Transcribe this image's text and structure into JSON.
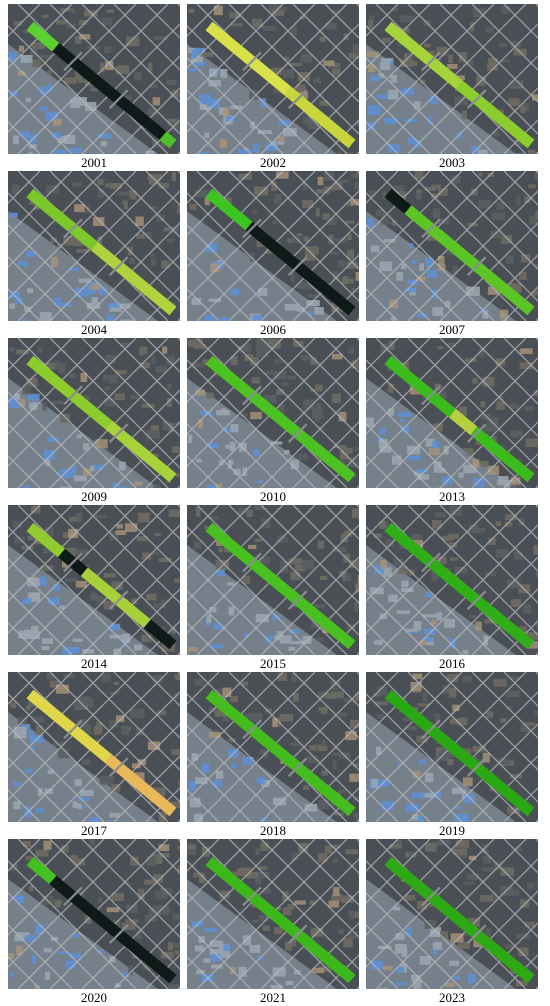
{
  "panels": [
    {
      "year": "2001",
      "corridor": [
        {
          "from": 0.0,
          "to": 0.18,
          "c": "#5ad12e"
        },
        {
          "from": 0.18,
          "to": 0.93,
          "c": "#0d1a18"
        },
        {
          "from": 0.93,
          "to": 1.0,
          "c": "#4fc02a"
        }
      ]
    },
    {
      "year": "2002",
      "corridor": [
        {
          "from": 0.0,
          "to": 0.55,
          "c": "#d8e04a"
        },
        {
          "from": 0.55,
          "to": 1.0,
          "c": "#c8d63c"
        }
      ]
    },
    {
      "year": "2003",
      "corridor": [
        {
          "from": 0.0,
          "to": 0.5,
          "c": "#a4d43a"
        },
        {
          "from": 0.5,
          "to": 1.0,
          "c": "#8ccc2c"
        }
      ]
    },
    {
      "year": "2004",
      "corridor": [
        {
          "from": 0.0,
          "to": 0.45,
          "c": "#7cc82a"
        },
        {
          "from": 0.45,
          "to": 1.0,
          "c": "#b0d23e"
        }
      ]
    },
    {
      "year": "2006",
      "corridor": [
        {
          "from": 0.0,
          "to": 0.28,
          "c": "#3cc420"
        },
        {
          "from": 0.28,
          "to": 1.0,
          "c": "#0d1a18"
        }
      ]
    },
    {
      "year": "2007",
      "corridor": [
        {
          "from": 0.0,
          "to": 0.14,
          "c": "#0d1a18"
        },
        {
          "from": 0.14,
          "to": 1.0,
          "c": "#5dc426"
        }
      ]
    },
    {
      "year": "2009",
      "corridor": [
        {
          "from": 0.0,
          "to": 0.55,
          "c": "#8ccc2c"
        },
        {
          "from": 0.55,
          "to": 1.0,
          "c": "#a8d23a"
        }
      ]
    },
    {
      "year": "2010",
      "corridor": [
        {
          "from": 0.0,
          "to": 1.0,
          "c": "#4cc222"
        }
      ]
    },
    {
      "year": "2013",
      "corridor": [
        {
          "from": 0.0,
          "to": 0.45,
          "c": "#3cbc1c"
        },
        {
          "from": 0.45,
          "to": 0.6,
          "c": "#b8d040"
        },
        {
          "from": 0.6,
          "to": 1.0,
          "c": "#3cbc1c"
        }
      ]
    },
    {
      "year": "2014",
      "corridor": [
        {
          "from": 0.0,
          "to": 0.22,
          "c": "#90cc30"
        },
        {
          "from": 0.22,
          "to": 0.38,
          "c": "#0d1a18"
        },
        {
          "from": 0.38,
          "to": 0.82,
          "c": "#a8d03a"
        },
        {
          "from": 0.82,
          "to": 1.0,
          "c": "#0d1a18"
        }
      ]
    },
    {
      "year": "2015",
      "corridor": [
        {
          "from": 0.0,
          "to": 1.0,
          "c": "#48c020"
        }
      ]
    },
    {
      "year": "2016",
      "corridor": [
        {
          "from": 0.0,
          "to": 1.0,
          "c": "#2fae18"
        }
      ]
    },
    {
      "year": "2017",
      "corridor": [
        {
          "from": 0.0,
          "to": 0.55,
          "c": "#e0d64a"
        },
        {
          "from": 0.55,
          "to": 1.0,
          "c": "#e8b85a"
        }
      ]
    },
    {
      "year": "2018",
      "corridor": [
        {
          "from": 0.0,
          "to": 1.0,
          "c": "#44bc1e"
        }
      ]
    },
    {
      "year": "2019",
      "corridor": [
        {
          "from": 0.0,
          "to": 1.0,
          "c": "#2aa814"
        }
      ]
    },
    {
      "year": "2020",
      "corridor": [
        {
          "from": 0.0,
          "to": 0.16,
          "c": "#44c020"
        },
        {
          "from": 0.16,
          "to": 1.0,
          "c": "#0d1a18"
        }
      ]
    },
    {
      "year": "2021",
      "corridor": [
        {
          "from": 0.0,
          "to": 1.0,
          "c": "#3cb81a"
        }
      ]
    },
    {
      "year": "2023",
      "corridor": [
        {
          "from": 0.0,
          "to": 1.0,
          "c": "#2ea814"
        }
      ]
    }
  ],
  "colors": {
    "urban_dark": "#4a4f55",
    "urban_light": "#7c8894",
    "roof_blue": "#5f8fd0",
    "road": "#b8bcc0",
    "soil": "#a99478"
  }
}
